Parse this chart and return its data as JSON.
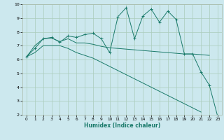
{
  "xlabel": "Humidex (Indice chaleur)",
  "bg_color": "#cce8ee",
  "grid_color": "#aaccbb",
  "line_color": "#1a7a6a",
  "xlim": [
    -0.5,
    23.5
  ],
  "ylim": [
    2,
    10
  ],
  "xticks": [
    0,
    1,
    2,
    3,
    4,
    5,
    6,
    7,
    8,
    9,
    10,
    11,
    12,
    13,
    14,
    15,
    16,
    17,
    18,
    19,
    20,
    21,
    22,
    23
  ],
  "yticks": [
    2,
    3,
    4,
    5,
    6,
    7,
    8,
    9,
    10
  ],
  "line1_x": [
    0,
    1,
    2,
    3,
    4,
    5,
    6,
    7,
    8,
    9,
    10,
    11,
    12,
    13,
    14,
    15,
    16,
    17,
    18,
    19,
    20,
    21,
    22,
    23
  ],
  "line1_y": [
    6.2,
    6.8,
    7.5,
    7.6,
    7.25,
    7.7,
    7.6,
    7.8,
    7.9,
    7.5,
    6.5,
    9.1,
    9.75,
    7.5,
    9.15,
    9.65,
    8.7,
    9.5,
    8.9,
    6.4,
    6.4,
    5.1,
    4.15,
    1.9
  ],
  "line2_x": [
    0,
    1,
    2,
    3,
    4,
    5,
    6,
    7,
    8,
    9,
    10,
    11,
    12,
    13,
    14,
    15,
    16,
    17,
    18,
    19,
    20,
    21,
    22
  ],
  "line2_y": [
    6.2,
    7.0,
    7.5,
    7.55,
    7.3,
    7.5,
    7.2,
    7.2,
    7.1,
    6.95,
    6.85,
    6.8,
    6.75,
    6.7,
    6.65,
    6.6,
    6.55,
    6.5,
    6.45,
    6.4,
    6.4,
    6.35,
    6.3
  ],
  "line3_x": [
    0,
    1,
    2,
    3,
    4,
    5,
    6,
    7,
    8,
    9,
    10,
    11,
    12,
    13,
    14,
    15,
    16,
    17,
    18,
    19,
    20,
    21
  ],
  "line3_y": [
    6.2,
    6.5,
    7.0,
    7.0,
    7.0,
    6.8,
    6.5,
    6.3,
    6.1,
    5.8,
    5.5,
    5.2,
    4.9,
    4.6,
    4.3,
    4.0,
    3.7,
    3.4,
    3.1,
    2.8,
    2.5,
    2.2
  ]
}
